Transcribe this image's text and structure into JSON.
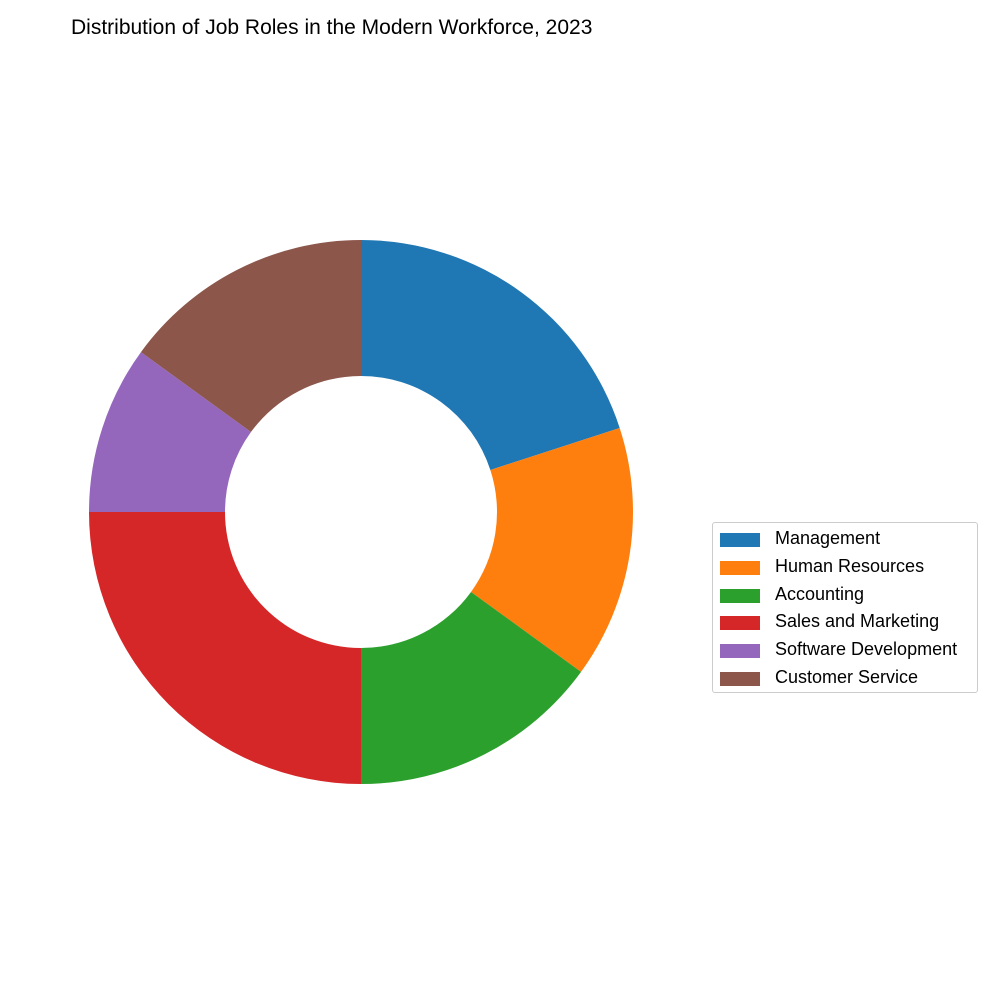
{
  "chart_data": {
    "type": "pie",
    "title": "Distribution of Job Roles in the Modern Workforce, 2023",
    "categories": [
      "Management",
      "Human Resources",
      "Accounting",
      "Sales and Marketing",
      "Software Development",
      "Customer Service"
    ],
    "values": [
      20,
      15,
      15,
      25,
      10,
      15
    ],
    "colors": [
      "#1f77b4",
      "#ff7f0e",
      "#2ca02c",
      "#d62728",
      "#9467bd",
      "#8c564b"
    ],
    "donut": true,
    "start_angle_deg": 90,
    "direction": "clockwise",
    "legend_placement": "right"
  }
}
